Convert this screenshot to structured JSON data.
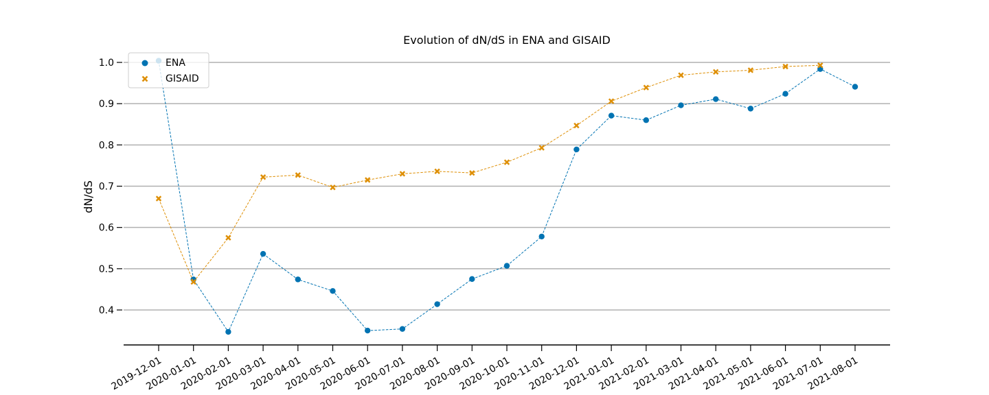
{
  "chart_data": {
    "type": "line",
    "title": "Evolution of dN/dS in ENA and GISAID",
    "xlabel": "",
    "ylabel": "dN/dS",
    "categories": [
      "2019-12-01",
      "2020-01-01",
      "2020-02-01",
      "2020-03-01",
      "2020-04-01",
      "2020-05-01",
      "2020-06-01",
      "2020-07-01",
      "2020-08-01",
      "2020-09-01",
      "2020-10-01",
      "2020-11-01",
      "2020-12-01",
      "2021-01-01",
      "2021-02-01",
      "2021-03-01",
      "2021-04-01",
      "2021-05-01",
      "2021-06-01",
      "2021-07-01",
      "2021-08-01"
    ],
    "yticks": [
      "0.4",
      "0.5",
      "0.6",
      "0.7",
      "0.8",
      "0.9",
      "1.0"
    ],
    "ylim": [
      0.315,
      1.03
    ],
    "grid": true,
    "legend_position": "top-left",
    "series": [
      {
        "name": "ENA",
        "color": "#0173b2",
        "marker": "circle",
        "values": [
          1.004,
          0.474,
          0.347,
          0.536,
          0.474,
          0.446,
          0.35,
          0.354,
          0.414,
          0.475,
          0.507,
          0.578,
          0.789,
          0.871,
          0.86,
          0.896,
          0.911,
          0.888,
          0.924,
          0.984,
          0.941
        ]
      },
      {
        "name": "GISAID",
        "color": "#de8f05",
        "marker": "x",
        "values": [
          0.67,
          0.468,
          0.575,
          0.722,
          0.727,
          0.697,
          0.715,
          0.73,
          0.736,
          0.732,
          0.758,
          0.793,
          0.847,
          0.906,
          0.939,
          0.969,
          0.977,
          0.981,
          0.99,
          0.993,
          null
        ]
      }
    ]
  }
}
